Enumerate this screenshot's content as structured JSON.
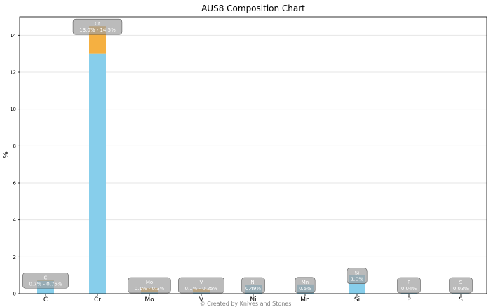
{
  "chart_data": {
    "type": "bar",
    "title": "AUS8 Composition Chart",
    "ylabel": "%",
    "xlabel": "",
    "ylim": [
      0,
      15
    ],
    "yticks": [
      0,
      2,
      4,
      6,
      8,
      10,
      12,
      14
    ],
    "grid": "horizontal",
    "categories": [
      "C",
      "Cr",
      "Mo",
      "V",
      "Ni",
      "Mn",
      "Si",
      "P",
      "S"
    ],
    "series": [
      {
        "role": "base",
        "color": "#87ceeb",
        "values": [
          0.7,
          13.0,
          0.1,
          0.1,
          0.49,
          0.5,
          1.0,
          0.04,
          0.03
        ]
      },
      {
        "role": "range",
        "color": "#f5b041",
        "values": [
          0.05,
          1.5,
          0.2,
          0.15,
          0,
          0,
          0,
          0,
          0
        ]
      }
    ],
    "annotations": [
      {
        "category": "C",
        "name": "C",
        "text": "0.7% - 0.75%"
      },
      {
        "category": "Cr",
        "name": "Cr",
        "text": "13.0% - 14.5%"
      },
      {
        "category": "Mo",
        "name": "Mo",
        "text": "0.1% - 0.3%"
      },
      {
        "category": "V",
        "name": "V",
        "text": "0.1% - 0.25%"
      },
      {
        "category": "Ni",
        "name": "Ni",
        "text": "0.49%"
      },
      {
        "category": "Mn",
        "name": "Mn",
        "text": "0.5%"
      },
      {
        "category": "Si",
        "name": "Si",
        "text": "1.0%"
      },
      {
        "category": "P",
        "name": "P",
        "text": "0.04%"
      },
      {
        "category": "S",
        "name": "S",
        "text": "0.03%"
      }
    ],
    "footer": "© Created by Knives and Stones"
  }
}
